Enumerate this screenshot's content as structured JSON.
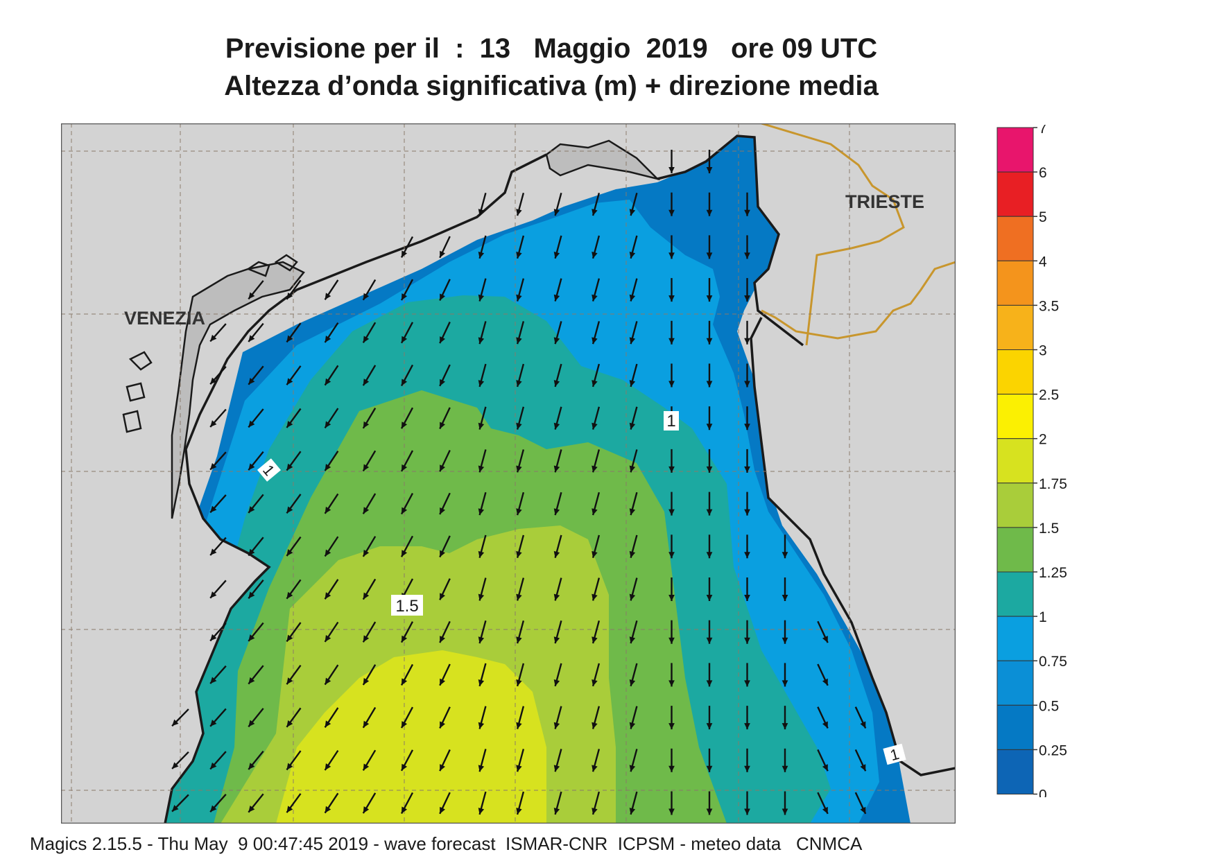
{
  "title": {
    "line1": "Previsione per il  :  13   Maggio  2019   ore 09 UTC",
    "line2": "Altezza d’onda significativa (m) + direzione media"
  },
  "map": {
    "cities": [
      "VENEZIA",
      "TRIESTE"
    ],
    "contour_labels": [
      "1",
      "1",
      "1.5",
      "1"
    ],
    "land_color": "#d3d3d3",
    "coast_color": "#1a1a1a",
    "border_color": "#c8962d",
    "arrow_direction": "south-southwest"
  },
  "legend": {
    "units": "m",
    "tick_labels": [
      "7",
      "6",
      "5",
      "4",
      "3.5",
      "3",
      "2.5",
      "2",
      "1.75",
      "1.5",
      "1.25",
      "1",
      "0.75",
      "0.5",
      "0.25",
      "0"
    ],
    "colors": [
      "#e8156c",
      "#e81f24",
      "#ef6f22",
      "#f4941c",
      "#f7b21a",
      "#fbd400",
      "#fbf002",
      "#d7e21f",
      "#a9cd3a",
      "#6fba4a",
      "#1ca9a1",
      "#0a9fe0",
      "#0b8fd6",
      "#0579c4",
      "#0d65b5"
    ]
  },
  "footer": "Magics 2.15.5 - Thu May  9 00:47:45 2019 - wave forecast  ISMAR-CNR  ICPSM - meteo data   CNMCA"
}
